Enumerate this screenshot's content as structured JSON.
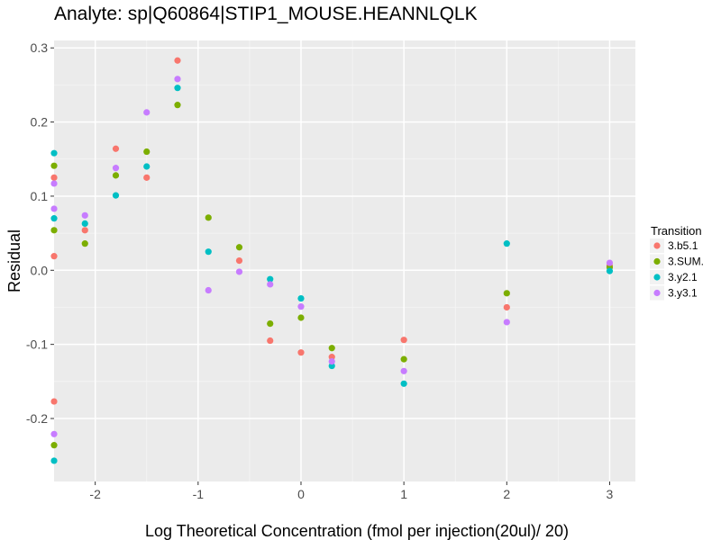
{
  "chart_data": {
    "type": "scatter",
    "title": "Analyte: sp|Q60864|STIP1_MOUSE.HEANNLQLK",
    "xlabel": "Log Theoretical Concentration (fmol per injection(20ul)/ 20)",
    "ylabel": "Residual",
    "xlim": [
      -2.4,
      3.25
    ],
    "ylim": [
      -0.285,
      0.31
    ],
    "x_ticks": [
      -2,
      -1,
      0,
      1,
      2,
      3
    ],
    "x_tick_labels": [
      "-2",
      "-1",
      "0",
      "1",
      "2",
      "3"
    ],
    "y_ticks": [
      -0.2,
      -0.1,
      0.0,
      0.1,
      0.2,
      0.3
    ],
    "y_tick_labels": [
      "-0.2",
      "-0.1",
      "0.0",
      "0.1",
      "0.2",
      "0.3"
    ],
    "legend_title": "Transition",
    "legend_position": "right",
    "series": [
      {
        "name": "3.b5.1",
        "color": "#F8766D",
        "points": [
          [
            -2.4,
            0.125
          ],
          [
            -2.4,
            0.019
          ],
          [
            -2.4,
            -0.177
          ],
          [
            -2.1,
            0.054
          ],
          [
            -1.8,
            0.164
          ],
          [
            -1.5,
            0.125
          ],
          [
            -1.2,
            0.283
          ],
          [
            -0.6,
            0.013
          ],
          [
            -0.3,
            -0.095
          ],
          [
            0.0,
            -0.111
          ],
          [
            0.3,
            -0.117
          ],
          [
            1.0,
            -0.094
          ],
          [
            2.0,
            -0.05
          ],
          [
            3.0,
            0.006
          ]
        ]
      },
      {
        "name": "3.SUM.",
        "color": "#7CAE00",
        "points": [
          [
            -2.4,
            0.141
          ],
          [
            -2.4,
            0.054
          ],
          [
            -2.4,
            -0.236
          ],
          [
            -2.1,
            0.036
          ],
          [
            -1.8,
            0.128
          ],
          [
            -1.5,
            0.16
          ],
          [
            -1.2,
            0.223
          ],
          [
            -0.9,
            0.071
          ],
          [
            -0.6,
            0.031
          ],
          [
            -0.3,
            -0.072
          ],
          [
            0.0,
            -0.064
          ],
          [
            0.3,
            -0.105
          ],
          [
            1.0,
            -0.12
          ],
          [
            2.0,
            -0.031
          ],
          [
            3.0,
            0.004
          ]
        ]
      },
      {
        "name": "3.y2.1",
        "color": "#00BFC4",
        "points": [
          [
            -2.4,
            0.158
          ],
          [
            -2.4,
            0.07
          ],
          [
            -2.4,
            -0.257
          ],
          [
            -2.1,
            0.063
          ],
          [
            -1.8,
            0.101
          ],
          [
            -1.5,
            0.14
          ],
          [
            -1.2,
            0.246
          ],
          [
            -0.9,
            0.025
          ],
          [
            -0.3,
            -0.012
          ],
          [
            0.0,
            -0.038
          ],
          [
            0.3,
            -0.129
          ],
          [
            1.0,
            -0.153
          ],
          [
            2.0,
            0.036
          ],
          [
            3.0,
            -0.001
          ]
        ]
      },
      {
        "name": "3.y3.1",
        "color": "#C77CFF",
        "points": [
          [
            -2.4,
            0.117
          ],
          [
            -2.4,
            0.083
          ],
          [
            -2.4,
            -0.221
          ],
          [
            -2.1,
            0.074
          ],
          [
            -1.8,
            0.138
          ],
          [
            -1.5,
            0.213
          ],
          [
            -1.2,
            0.258
          ],
          [
            -0.9,
            -0.027
          ],
          [
            -0.6,
            -0.002
          ],
          [
            -0.3,
            -0.019
          ],
          [
            0.0,
            -0.049
          ],
          [
            0.3,
            -0.123
          ],
          [
            1.0,
            -0.136
          ],
          [
            2.0,
            -0.07
          ],
          [
            3.0,
            0.01
          ]
        ]
      }
    ]
  }
}
